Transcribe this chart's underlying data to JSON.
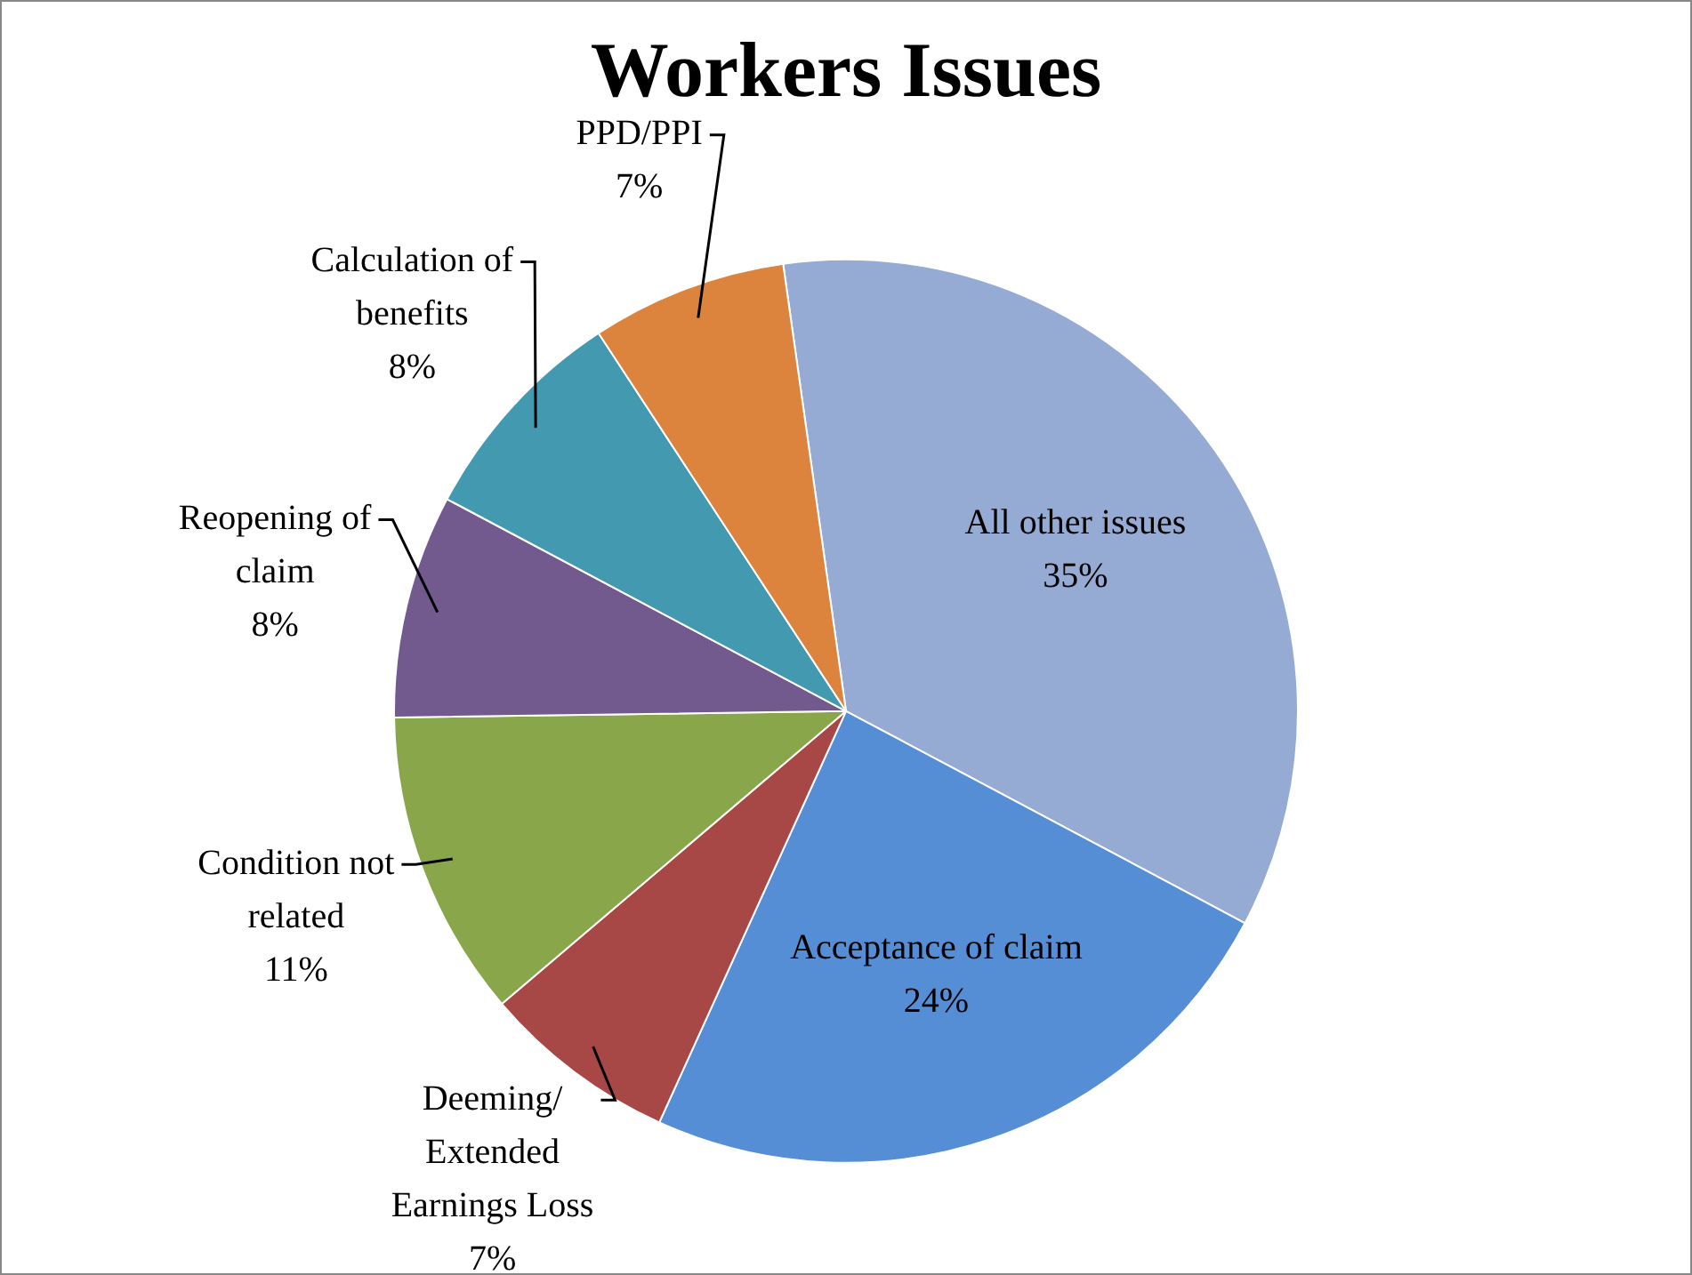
{
  "chart_data": {
    "type": "pie",
    "title": "Workers Issues",
    "categories": [
      "All other issues",
      "Acceptance of claim",
      "Deeming/ Extended Earnings Loss",
      "Condition not related",
      "Reopening of claim",
      "Calculation of benefits",
      "PPD/PPI"
    ],
    "values": [
      35,
      24,
      7,
      11,
      8,
      8,
      7
    ],
    "value_labels": [
      "35%",
      "24%",
      "7%",
      "11%",
      "8%",
      "8%",
      "7%"
    ],
    "colors": [
      "#95abd3",
      "#558ed5",
      "#a84846",
      "#8aa64b",
      "#725a8f",
      "#4299b0",
      "#dc843e"
    ]
  }
}
